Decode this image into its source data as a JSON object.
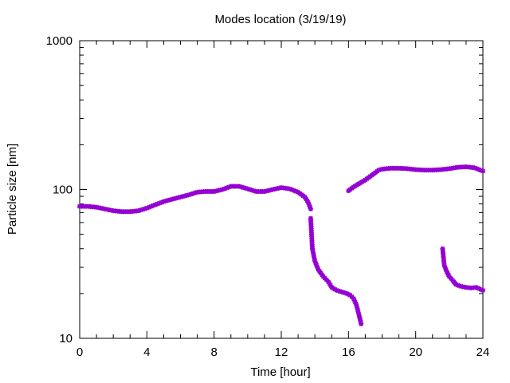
{
  "chart_data": {
    "type": "scatter",
    "title": "Modes location (3/19/19)",
    "xlabel": "Time [hour]",
    "ylabel": "Particle size [nm]",
    "xlim": [
      0,
      24
    ],
    "ylim": [
      10,
      1000
    ],
    "y_scale": "log",
    "x_ticks": [
      "0",
      "4",
      "8",
      "12",
      "16",
      "20",
      "24"
    ],
    "y_ticks": [
      "10",
      "100",
      "1000"
    ],
    "grid": false,
    "legend": "none",
    "marker_color": "#9400d3",
    "series": [
      {
        "x": [
          0.0,
          0.5,
          1.0,
          1.5,
          2.0,
          2.5,
          3.0,
          3.5,
          4.0,
          4.5,
          5.0,
          5.5,
          6.0,
          6.5,
          7.0,
          7.5,
          8.0,
          8.5,
          9.0,
          9.5,
          10.0,
          10.5,
          11.0,
          11.5,
          12.0,
          12.5,
          13.0,
          13.4,
          13.6,
          13.75
        ],
        "y": [
          77,
          77,
          76,
          74,
          72,
          71,
          71,
          72,
          75,
          79,
          83,
          86,
          89,
          92,
          96,
          97,
          97,
          100,
          105,
          105,
          101,
          97,
          97,
          100,
          103,
          101,
          96,
          89,
          82,
          74
        ]
      },
      {
        "x": [
          13.75,
          13.85,
          14.0,
          14.2,
          14.5,
          14.8,
          15.0,
          15.3,
          15.6,
          15.9,
          16.1,
          16.3,
          16.45,
          16.55,
          16.65,
          16.75
        ],
        "y": [
          64,
          40,
          33,
          29,
          26,
          24,
          22,
          21,
          20.5,
          20,
          19.5,
          18.5,
          17,
          15.5,
          14,
          12.5
        ]
      },
      {
        "x": [
          16.0,
          16.3,
          16.6,
          17.0,
          17.4,
          17.8,
          18.0,
          18.5,
          19.0,
          19.5,
          20.0,
          20.5,
          21.0,
          21.5,
          22.0,
          22.5,
          23.0,
          23.5,
          24.0
        ],
        "y": [
          98,
          104,
          109,
          116,
          125,
          135,
          137,
          139,
          139,
          138,
          136,
          135,
          135,
          136,
          138,
          141,
          142,
          140,
          133
        ]
      },
      {
        "x": [
          21.6,
          21.7,
          21.85,
          22.0,
          22.2,
          22.4,
          22.6,
          22.8,
          23.0,
          23.3,
          23.6,
          24.0
        ],
        "y": [
          40,
          31,
          28,
          26,
          24.5,
          23,
          22.5,
          22.2,
          22,
          21.8,
          22,
          21
        ]
      }
    ]
  }
}
